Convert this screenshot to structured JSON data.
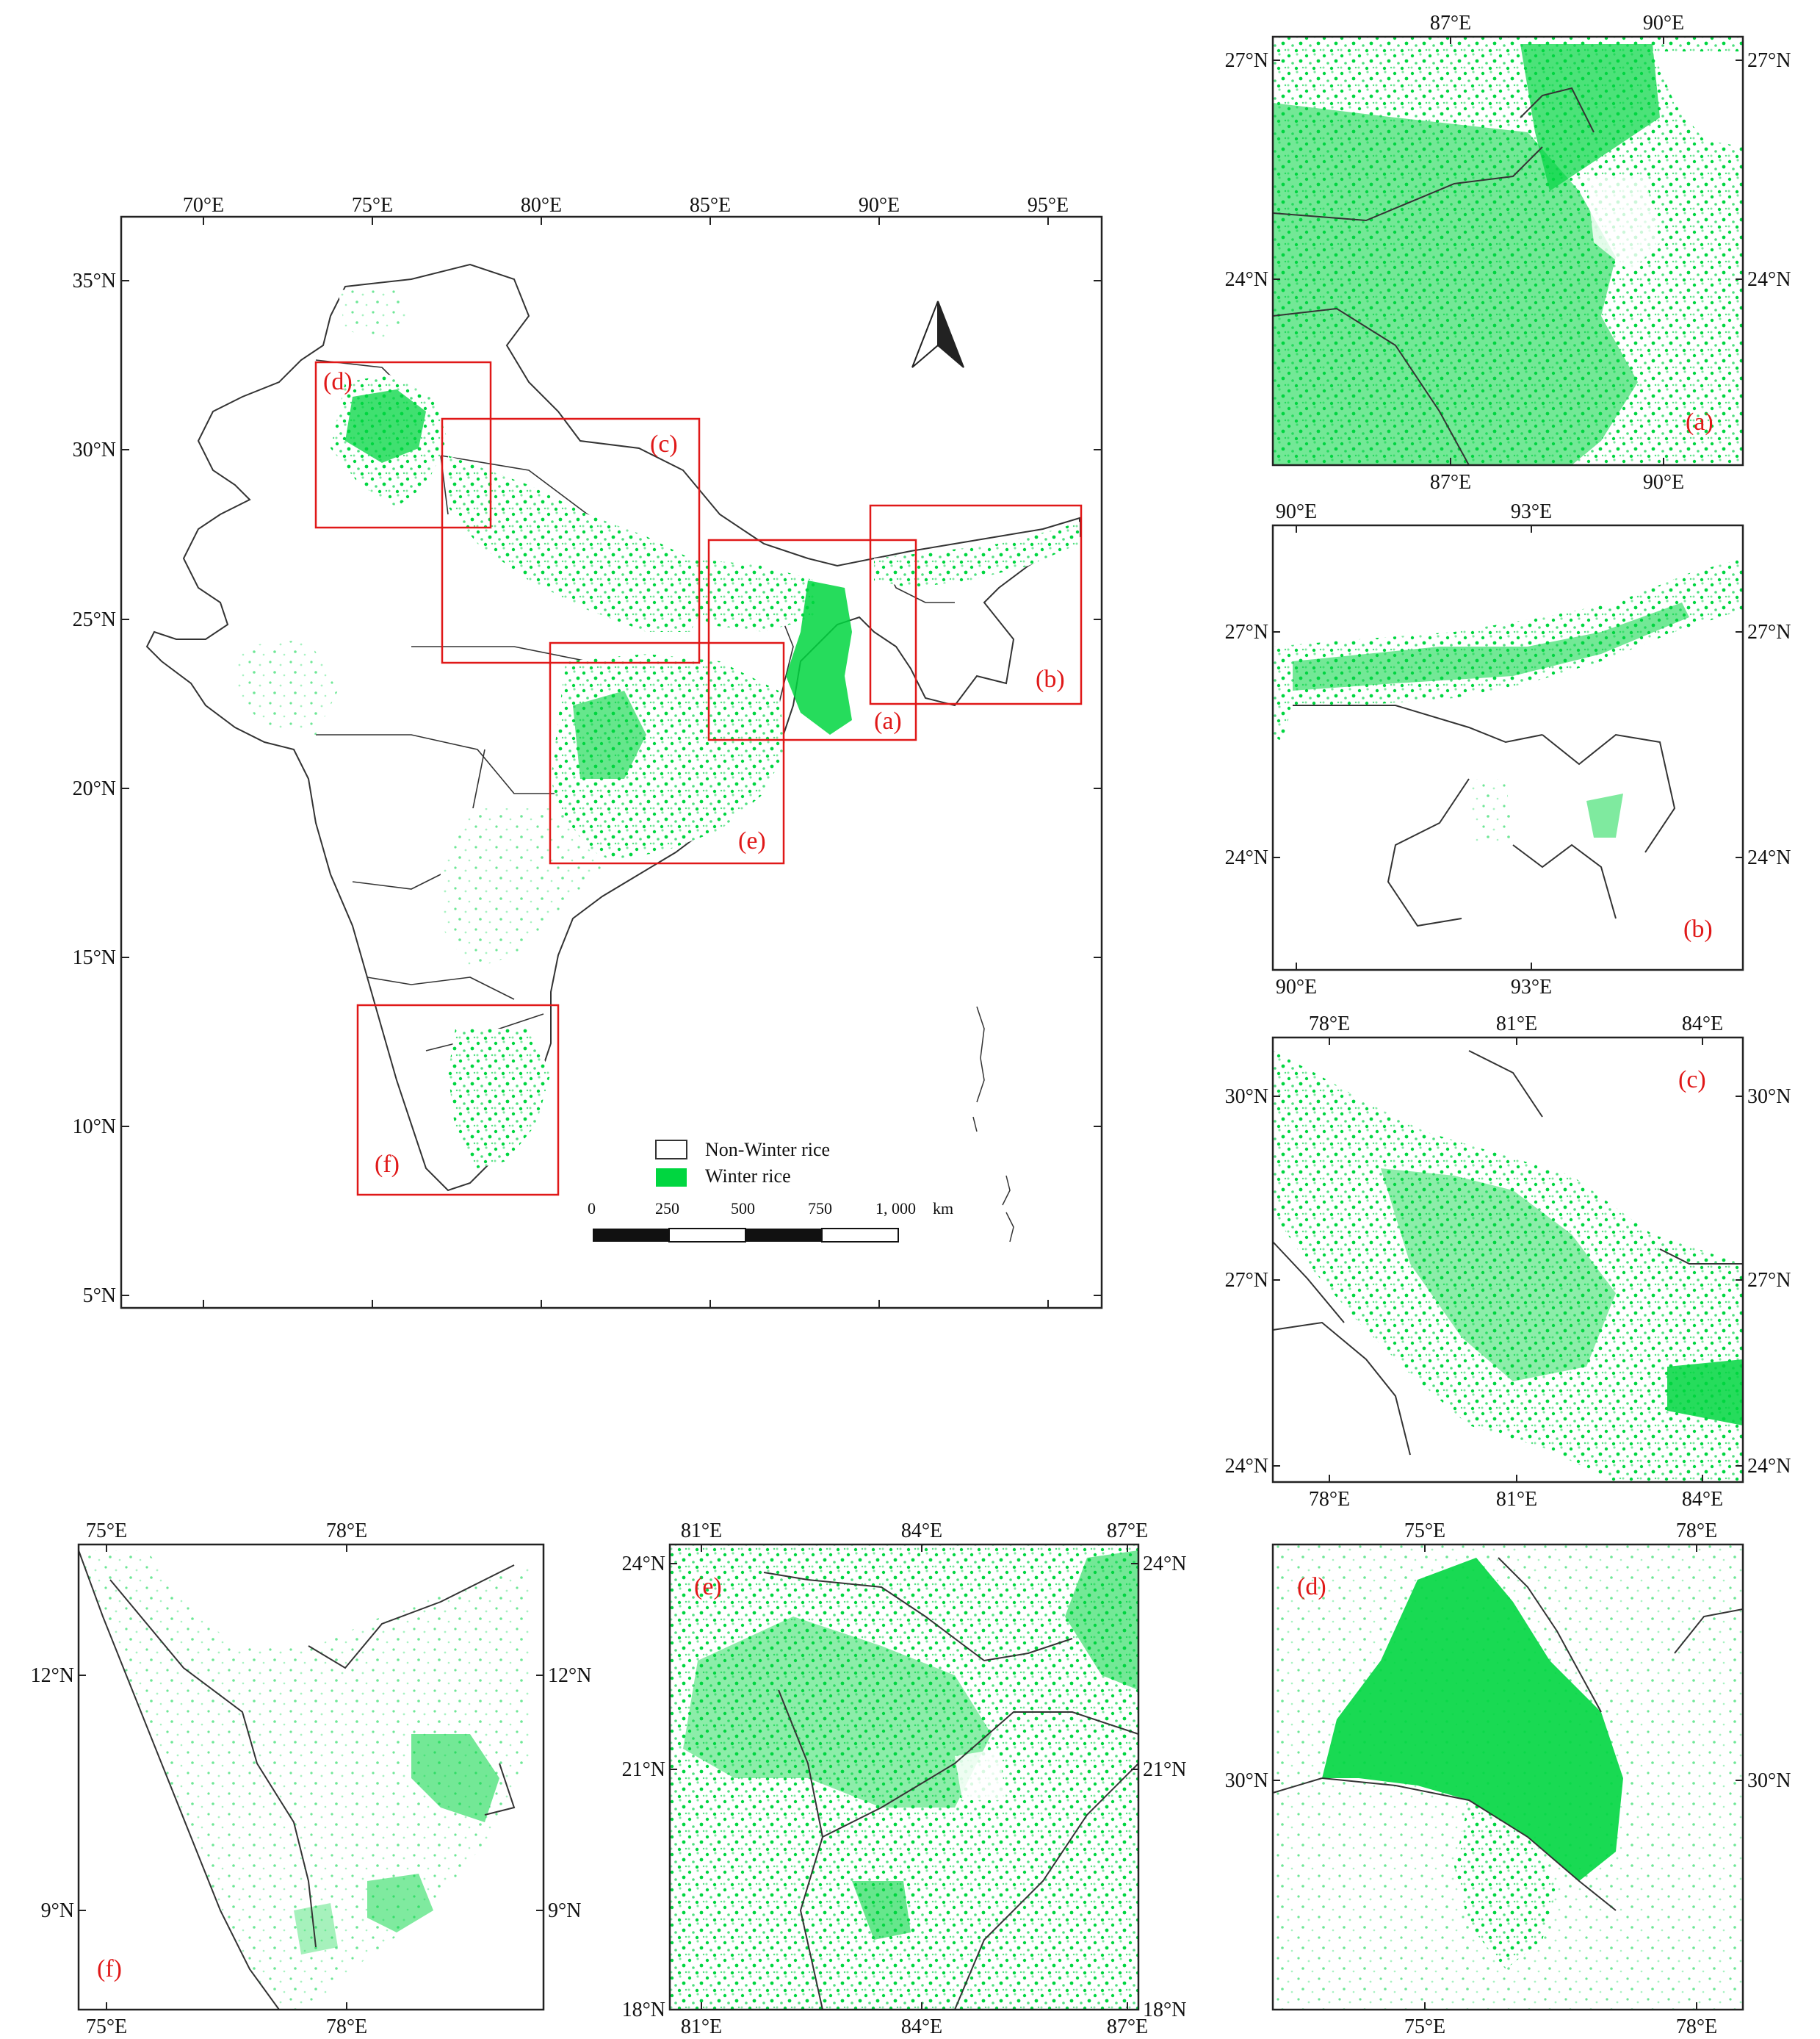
{
  "main_map": {
    "lon_ticks": [
      "70°E",
      "75°E",
      "80°E",
      "85°E",
      "90°E",
      "95°E"
    ],
    "lat_ticks": [
      "35°N",
      "30°N",
      "25°N",
      "20°N",
      "15°N",
      "10°N",
      "5°N"
    ],
    "inset_labels": [
      "(a)",
      "(b)",
      "(c)",
      "(d)",
      "(e)",
      "(f)"
    ],
    "north_arrow": "north-arrow-icon",
    "legend": [
      {
        "label": "Non-Winter rice",
        "color": "#ffffff"
      },
      {
        "label": "Winter rice",
        "color": "#00d640"
      }
    ],
    "scale_bar": {
      "labels": [
        "0",
        "250",
        "500",
        "750",
        "1, 000"
      ],
      "unit": "km"
    }
  },
  "panels": {
    "a": {
      "label": "(a)",
      "top_lon": [
        "87°E",
        "90°E"
      ],
      "bottom_lon": [
        "87°E",
        "90°E"
      ],
      "left_lat": [
        "27°N",
        "24°N"
      ],
      "right_lat": [
        "27°N",
        "24°N"
      ]
    },
    "b": {
      "label": "(b)",
      "top_lon": [
        "90°E",
        "93°E"
      ],
      "bottom_lon": [
        "90°E",
        "93°E"
      ],
      "left_lat": [
        "27°N",
        "24°N"
      ],
      "right_lat": [
        "27°N",
        "24°N"
      ]
    },
    "c": {
      "label": "(c)",
      "top_lon": [
        "78°E",
        "81°E",
        "84°E"
      ],
      "bottom_lon": [
        "78°E",
        "81°E",
        "84°E"
      ],
      "left_lat": [
        "30°N",
        "27°N",
        "24°N"
      ],
      "right_lat": [
        "30°N",
        "27°N",
        "24°N"
      ]
    },
    "d": {
      "label": "(d)",
      "top_lon": [
        "75°E",
        "78°E"
      ],
      "bottom_lon": [
        "75°E",
        "78°E"
      ],
      "left_lat": [
        "30°N"
      ],
      "right_lat": [
        "30°N"
      ]
    },
    "e": {
      "label": "(e)",
      "top_lon": [
        "81°E",
        "84°E",
        "87°E"
      ],
      "bottom_lon": [
        "81°E",
        "84°E",
        "87°E"
      ],
      "left_lat": [
        "24°N",
        "21°N",
        "18°N"
      ],
      "right_lat": [
        "24°N",
        "21°N",
        "18°N"
      ]
    },
    "f": {
      "label": "(f)",
      "top_lon": [
        "75°E",
        "78°E"
      ],
      "bottom_lon": [
        "75°E",
        "78°E"
      ],
      "left_lat": [
        "12°N",
        "9°N"
      ],
      "right_lat": [
        "12°N",
        "9°N"
      ]
    }
  },
  "colors": {
    "winter_rice": "#00d640",
    "winter_rice_light": "#9af0b6",
    "frame": "#222222",
    "inset": "#e01818"
  }
}
